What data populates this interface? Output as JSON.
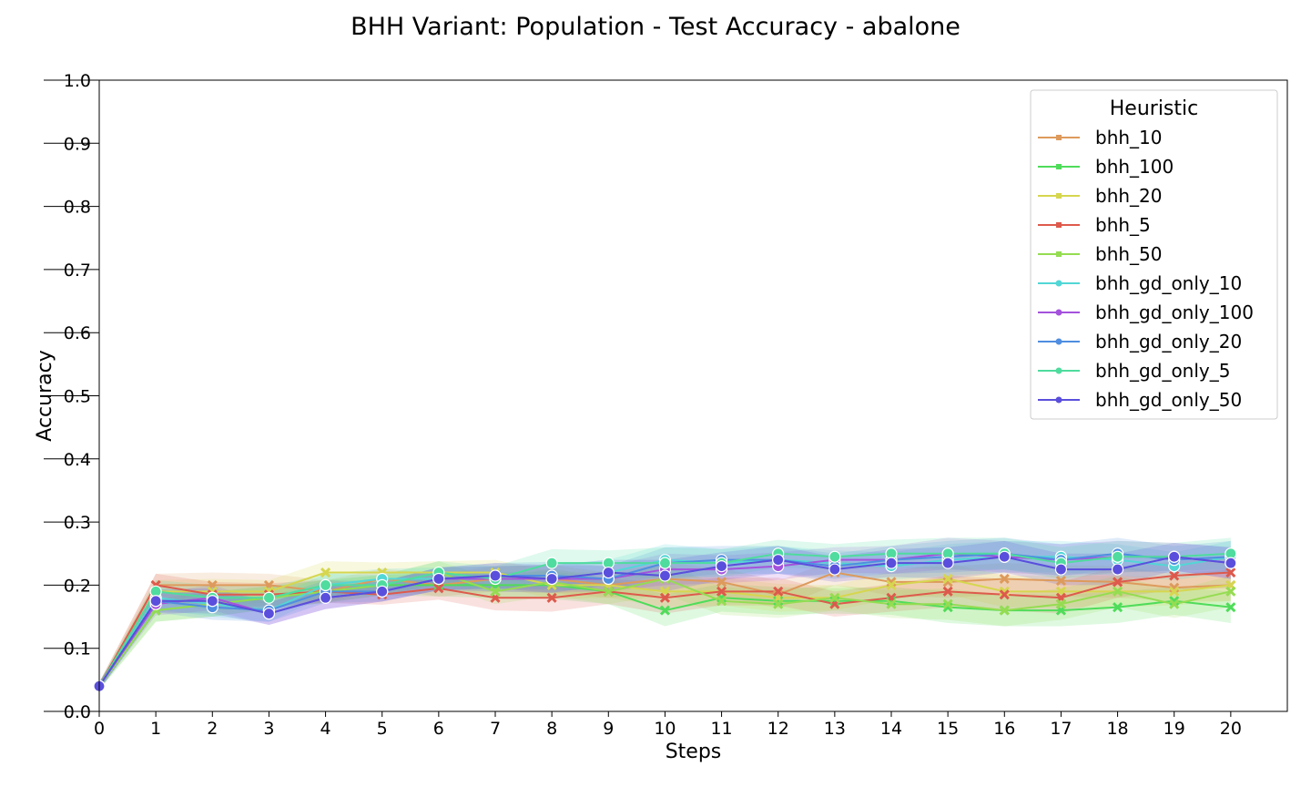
{
  "chart_data": {
    "type": "line",
    "title": "BHH Variant: Population - Test Accuracy - abalone",
    "xlabel": "Steps",
    "ylabel": "Accuracy",
    "xlim": [
      0,
      21
    ],
    "ylim": [
      0,
      1
    ],
    "x": [
      0,
      1,
      2,
      3,
      4,
      5,
      6,
      7,
      8,
      9,
      10,
      11,
      12,
      13,
      14,
      15,
      16,
      17,
      18,
      19,
      20
    ],
    "x_ticks": [
      "0",
      "1",
      "2",
      "3",
      "4",
      "5",
      "6",
      "7",
      "8",
      "9",
      "10",
      "11",
      "12",
      "13",
      "14",
      "15",
      "16",
      "17",
      "18",
      "19",
      "20"
    ],
    "y_ticks": [
      "0.0",
      "0.1",
      "0.2",
      "0.3",
      "0.4",
      "0.5",
      "0.6",
      "0.7",
      "0.8",
      "0.9",
      "1.0"
    ],
    "grid": false,
    "legend": {
      "title": "Heuristic",
      "position": "top-right"
    },
    "series": [
      {
        "name": "bhh_10",
        "color": "#dd9a5c",
        "marker": "x",
        "values": [
          0.04,
          0.2,
          0.2,
          0.2,
          0.19,
          0.21,
          0.2,
          0.21,
          0.21,
          0.2,
          0.21,
          0.205,
          0.185,
          0.22,
          0.205,
          0.205,
          0.21,
          0.207,
          0.205,
          0.196,
          0.2
        ]
      },
      {
        "name": "bhh_100",
        "color": "#4fdc5a",
        "marker": "x",
        "values": [
          0.04,
          0.16,
          0.17,
          0.18,
          0.19,
          0.2,
          0.2,
          0.2,
          0.2,
          0.19,
          0.16,
          0.18,
          0.175,
          0.175,
          0.175,
          0.165,
          0.16,
          0.16,
          0.165,
          0.175,
          0.165
        ]
      },
      {
        "name": "bhh_20",
        "color": "#d6d650",
        "marker": "x",
        "values": [
          0.04,
          0.19,
          0.19,
          0.19,
          0.22,
          0.22,
          0.22,
          0.22,
          0.2,
          0.2,
          0.19,
          0.19,
          0.18,
          0.18,
          0.2,
          0.21,
          0.19,
          0.19,
          0.19,
          0.19,
          0.2
        ]
      },
      {
        "name": "bhh_5",
        "color": "#dd5a4c",
        "marker": "x",
        "values": [
          0.04,
          0.2,
          0.185,
          0.185,
          0.19,
          0.185,
          0.195,
          0.18,
          0.18,
          0.19,
          0.18,
          0.19,
          0.19,
          0.17,
          0.18,
          0.19,
          0.185,
          0.18,
          0.205,
          0.215,
          0.22
        ]
      },
      {
        "name": "bhh_50",
        "color": "#95dc52",
        "marker": "x",
        "values": [
          0.04,
          0.16,
          0.17,
          0.18,
          0.19,
          0.2,
          0.22,
          0.19,
          0.205,
          0.19,
          0.21,
          0.175,
          0.17,
          0.18,
          0.17,
          0.17,
          0.16,
          0.17,
          0.19,
          0.17,
          0.19
        ]
      },
      {
        "name": "bhh_gd_only_10",
        "color": "#52d6d6",
        "marker": "o",
        "values": [
          0.04,
          0.18,
          0.17,
          0.16,
          0.2,
          0.21,
          0.21,
          0.21,
          0.21,
          0.22,
          0.24,
          0.235,
          0.24,
          0.235,
          0.23,
          0.24,
          0.245,
          0.245,
          0.24,
          0.23,
          0.245
        ]
      },
      {
        "name": "bhh_gd_only_100",
        "color": "#a452dc",
        "marker": "o",
        "values": [
          0.04,
          0.17,
          0.18,
          0.155,
          0.18,
          0.19,
          0.21,
          0.21,
          0.21,
          0.21,
          0.225,
          0.225,
          0.23,
          0.24,
          0.24,
          0.25,
          0.245,
          0.24,
          0.245,
          0.245,
          0.235
        ]
      },
      {
        "name": "bhh_gd_only_20",
        "color": "#4f8ee0",
        "marker": "o",
        "values": [
          0.04,
          0.175,
          0.165,
          0.16,
          0.19,
          0.19,
          0.21,
          0.215,
          0.215,
          0.21,
          0.235,
          0.24,
          0.24,
          0.23,
          0.24,
          0.245,
          0.25,
          0.24,
          0.25,
          0.24,
          0.245
        ]
      },
      {
        "name": "bhh_gd_only_5",
        "color": "#4fdc9e",
        "marker": "o",
        "values": [
          0.04,
          0.19,
          0.18,
          0.18,
          0.2,
          0.2,
          0.22,
          0.21,
          0.235,
          0.235,
          0.235,
          0.235,
          0.25,
          0.245,
          0.25,
          0.25,
          0.25,
          0.235,
          0.245,
          0.245,
          0.25
        ]
      },
      {
        "name": "bhh_gd_only_50",
        "color": "#5a4fdc",
        "marker": "o",
        "values": [
          0.04,
          0.175,
          0.175,
          0.155,
          0.18,
          0.19,
          0.21,
          0.215,
          0.21,
          0.22,
          0.215,
          0.23,
          0.24,
          0.225,
          0.235,
          0.235,
          0.245,
          0.225,
          0.225,
          0.245,
          0.235
        ]
      }
    ]
  }
}
